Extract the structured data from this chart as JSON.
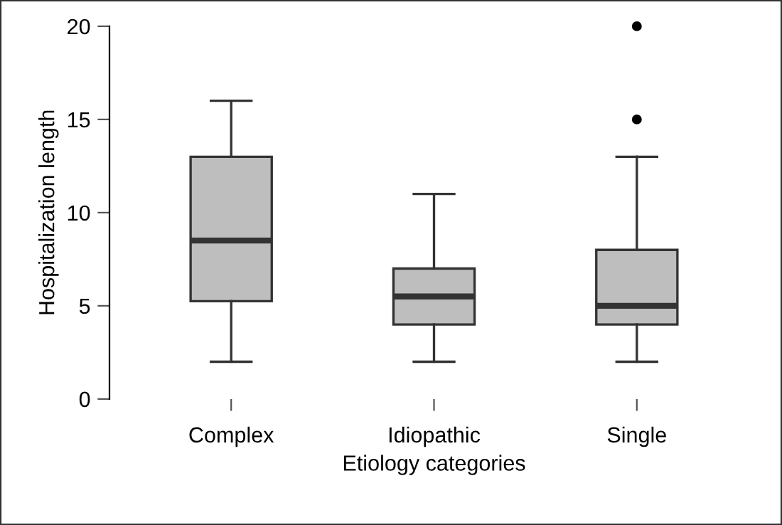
{
  "chart_data": {
    "type": "box",
    "xlabel": "Etiology categories",
    "ylabel": "Hospitalization length",
    "categories": [
      "Complex",
      "Idiopathic",
      "Single"
    ],
    "boxes": [
      {
        "low": 2,
        "q1": 5.25,
        "median": 8.5,
        "q3": 13,
        "high": 16
      },
      {
        "low": 2,
        "q1": 4,
        "median": 5.5,
        "q3": 7,
        "high": 11
      },
      {
        "low": 2,
        "q1": 4,
        "median": 5,
        "q3": 8,
        "high": 13,
        "outliers": [
          15,
          20
        ]
      }
    ],
    "color": "#bebebe",
    "ylim": [
      0,
      20
    ],
    "yticks": [
      0,
      5,
      10,
      15,
      20
    ],
    "grid": false,
    "legend": false
  }
}
